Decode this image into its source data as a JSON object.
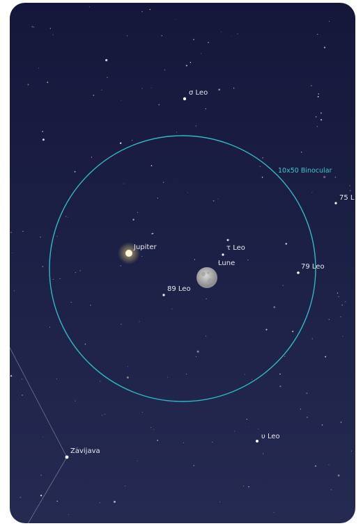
{
  "objects": [
    {
      "label": "σ Leo"
    },
    {
      "label": "75 L"
    },
    {
      "label": "Jupiter"
    },
    {
      "label": "τ Leo"
    },
    {
      "label": "Lune"
    },
    {
      "label": "79 Leo"
    },
    {
      "label": "89 Leo"
    },
    {
      "label": "υ Leo"
    },
    {
      "label": "Zavijava"
    }
  ],
  "overlay": {
    "label": "10x50 Binocular"
  }
}
